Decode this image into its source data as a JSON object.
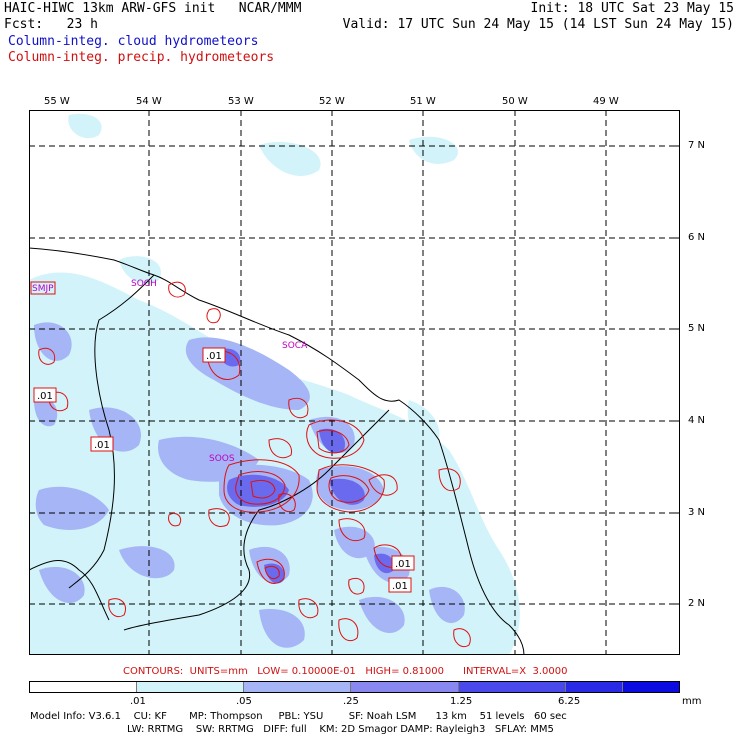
{
  "header": {
    "title": "HAIC-HIWC 13km ARW-GFS init   NCAR/MMM",
    "fcst": "Fcst:   23 h",
    "init": "Init: 18 UTC Sat 23 May 15",
    "valid": "Valid: 17 UTC Sun 24 May 15 (14 LST Sun 24 May 15)"
  },
  "legend": {
    "cloud": "Column-integ. cloud hydrometeors",
    "precip": "Column-integ. precip. hydrometeors",
    "cloud_color": "#1010c8",
    "precip_color": "#d01010"
  },
  "map": {
    "lon_labels": [
      "55 W",
      "54 W",
      "53 W",
      "52 W",
      "51 W",
      "50 W",
      "49 W"
    ],
    "lat_labels": [
      "7 N",
      "6 N",
      "5 N",
      "4 N",
      "3 N",
      "2 N"
    ],
    "stations": [
      "SMJP",
      "SOCH",
      "SOCA",
      "SOOS"
    ],
    "contour_labels": [
      ".01",
      ".01",
      ".01",
      ".01",
      ".01"
    ]
  },
  "contours": {
    "info": "CONTOURS:  UNITS=mm   LOW= 0.10000E-01   HIGH= 0.81000      INTERVAL=X  3.0000"
  },
  "colorbar": {
    "unit": "mm",
    "labels": [
      ".01",
      ".05",
      ".25",
      "1.25",
      "6.25"
    ],
    "colors": [
      "#ffffff",
      "#d2f3fa",
      "#a5b5f5",
      "#8888f0",
      "#4a4aec",
      "#2a2ae6",
      "#0c0ce2"
    ]
  },
  "model_info": {
    "line1": "Model Info: V3.6.1    CU: KF       MP: Thompson     PBL: YSU        SF: Noah LSM      13 km    51 levels   60 sec",
    "line2": "LW: RRTMG    SW: RRTMG   DIFF: full    KM: 2D Smagor DAMP: Rayleigh3   SFLAY: MM5"
  }
}
